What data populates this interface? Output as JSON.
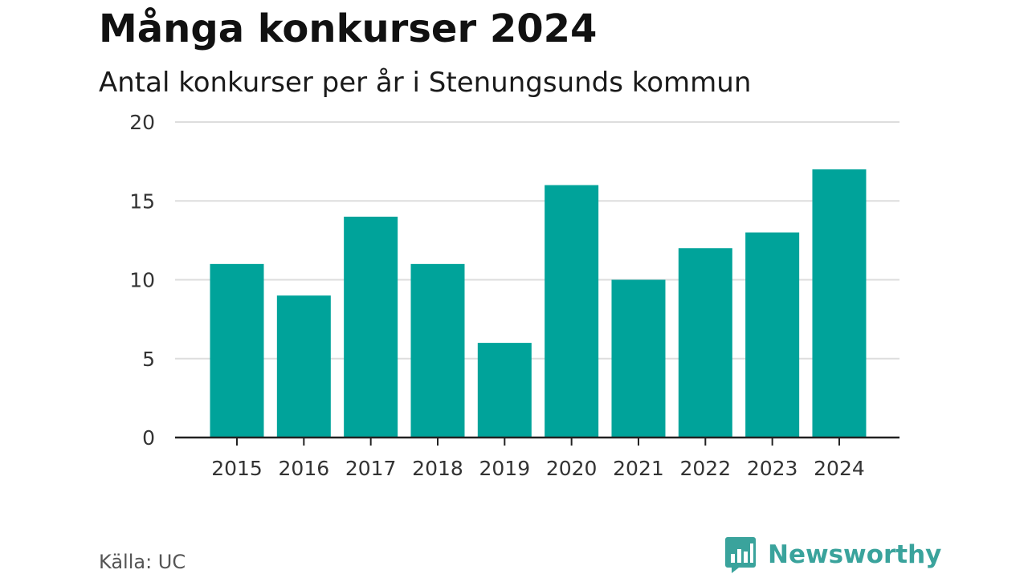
{
  "title": "Många konkurser 2024",
  "subtitle": "Antal konkurser per år i Stenungsunds kommun",
  "source": "Källa: UC",
  "brand": {
    "name": "Newsworthy",
    "icon": "bar-chart-speech-bubble-icon",
    "color": "#3aa39c"
  },
  "colors": {
    "bar": "#00a39a",
    "grid": "#dddddd",
    "axis": "#222222"
  },
  "chart_data": {
    "type": "bar",
    "title": "Många konkurser 2024",
    "subtitle": "Antal konkurser per år i Stenungsunds kommun",
    "xlabel": "",
    "ylabel": "",
    "categories": [
      "2015",
      "2016",
      "2017",
      "2018",
      "2019",
      "2020",
      "2021",
      "2022",
      "2023",
      "2024"
    ],
    "values": [
      11,
      9,
      14,
      11,
      6,
      16,
      10,
      12,
      13,
      17
    ],
    "ylim": [
      0,
      20
    ],
    "yticks": [
      0,
      5,
      10,
      15,
      20
    ],
    "grid": true,
    "legend": "none"
  }
}
